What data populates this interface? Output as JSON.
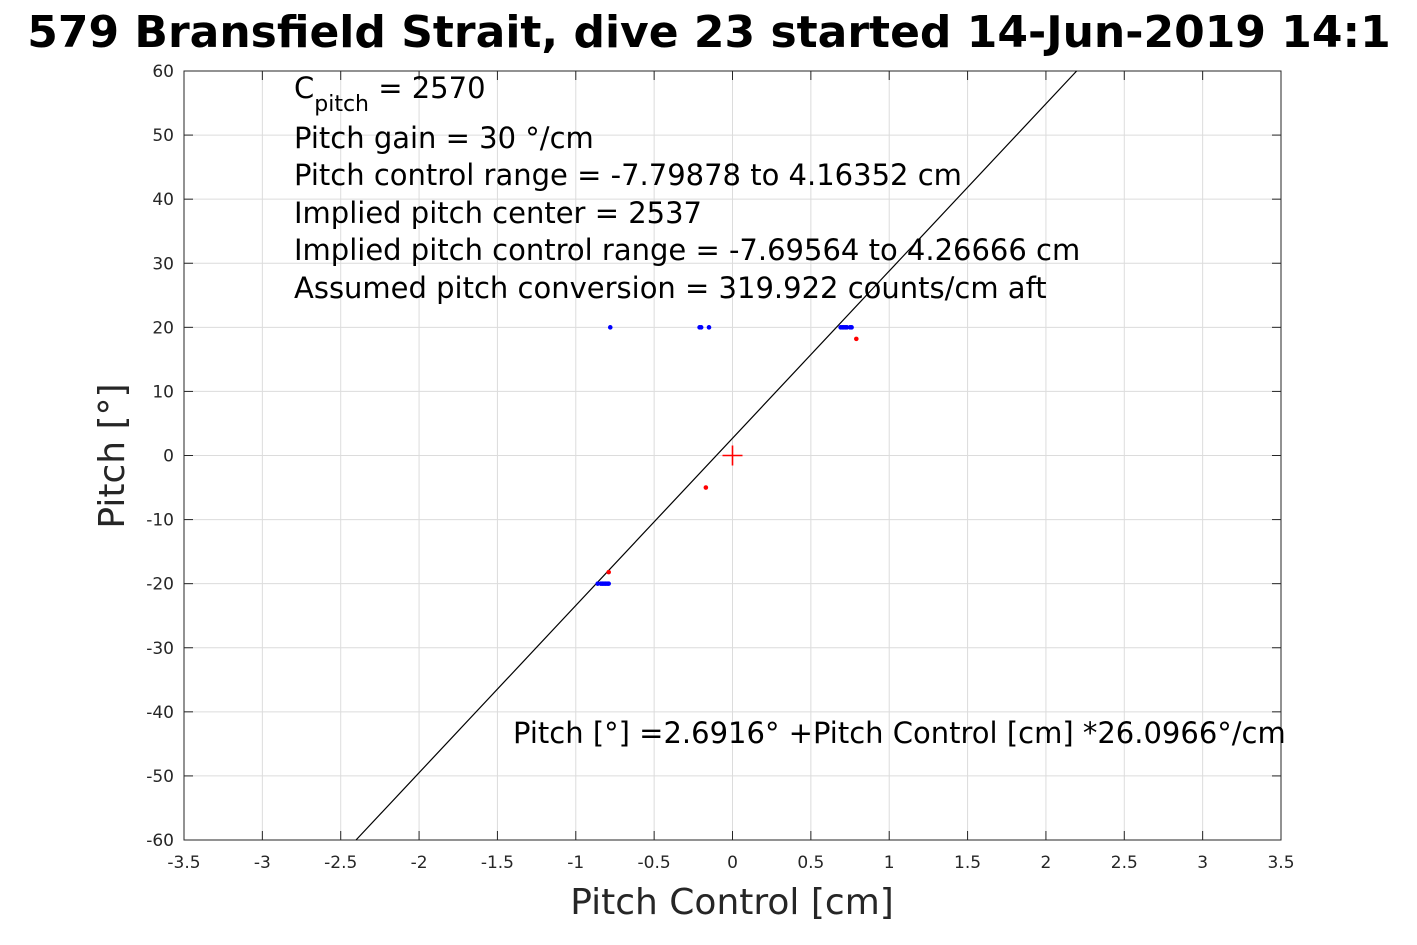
{
  "chart_data": {
    "type": "scatter",
    "title": "579 Bransfield Strait, dive 23 started 14-Jun-2019 14:1",
    "xlabel": "Pitch Control [cm]",
    "ylabel": "Pitch [°]",
    "xlim": [
      -3.5,
      3.5
    ],
    "ylim": [
      -60,
      60
    ],
    "grid": true,
    "x_ticks": [
      -3.5,
      -3,
      -2.5,
      -2,
      -1.5,
      -1,
      -0.5,
      0,
      0.5,
      1,
      1.5,
      2,
      2.5,
      3,
      3.5
    ],
    "y_ticks": [
      -60,
      -50,
      -40,
      -30,
      -20,
      -10,
      0,
      10,
      20,
      30,
      40,
      50,
      60
    ],
    "x_tick_labels": [
      "-3.5",
      "-3",
      "-2.5",
      "-2",
      "-1.5",
      "-1",
      "-0.5",
      "0",
      "0.5",
      "1",
      "1.5",
      "2",
      "2.5",
      "3",
      "3.5"
    ],
    "y_tick_labels": [
      "-60",
      "-50",
      "-40",
      "-30",
      "-20",
      "-10",
      "0",
      "10",
      "20",
      "30",
      "40",
      "50",
      "60"
    ],
    "series": [
      {
        "color": "#0000ff",
        "points": [
          [
            -0.78,
            20
          ],
          [
            -0.21,
            20
          ],
          [
            -0.2,
            20
          ],
          [
            -0.15,
            20
          ],
          [
            0.69,
            20
          ],
          [
            0.7,
            20
          ],
          [
            0.71,
            20
          ],
          [
            0.72,
            20
          ],
          [
            0.73,
            20
          ],
          [
            0.75,
            20
          ],
          [
            0.76,
            20
          ],
          [
            -0.86,
            -20
          ],
          [
            -0.84,
            -20
          ],
          [
            -0.83,
            -20
          ],
          [
            -0.82,
            -20
          ],
          [
            -0.81,
            -20
          ],
          [
            -0.8,
            -20
          ],
          [
            -0.79,
            -20
          ]
        ]
      },
      {
        "color": "#ff0000",
        "points": [
          [
            0.79,
            18.2
          ],
          [
            -0.17,
            -5
          ],
          [
            -0.79,
            -18.2
          ]
        ]
      }
    ],
    "fit_line": {
      "color": "#000000",
      "intercept": 2.6916,
      "slope": 26.0966
    },
    "center_marker": {
      "color": "#ff0000",
      "x": 0,
      "y": 0,
      "shape": "plus"
    },
    "annotations": {
      "c_pitch_main": "C",
      "c_pitch_sub": "pitch",
      "c_pitch_rest": " = 2570",
      "line2": "Pitch gain = 30 °/cm",
      "line3": "Pitch control range = -7.79878 to 4.16352 cm",
      "line4": "Implied pitch center = 2537",
      "line5": "Implied pitch control range = -7.69564 to 4.26666 cm",
      "line6": "Assumed pitch conversion = 319.922 counts/cm aft",
      "fit_equation": "Pitch [°] =2.6916° +Pitch Control [cm] *26.0966°/cm"
    }
  }
}
